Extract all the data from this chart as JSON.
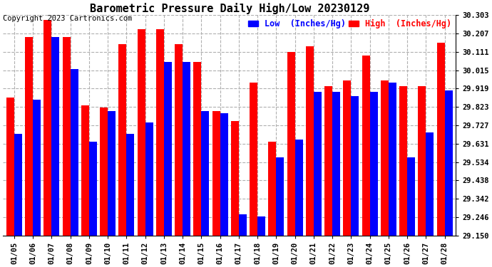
{
  "title": "Barometric Pressure Daily High/Low 20230129",
  "copyright": "Copyright 2023 Cartronics.com",
  "legend_low": "Low  (Inches/Hg)",
  "legend_high": "High  (Inches/Hg)",
  "dates": [
    "01/05",
    "01/06",
    "01/07",
    "01/08",
    "01/09",
    "01/10",
    "01/11",
    "01/12",
    "01/13",
    "01/14",
    "01/15",
    "01/16",
    "01/17",
    "01/18",
    "01/19",
    "01/20",
    "01/21",
    "01/22",
    "01/23",
    "01/24",
    "01/25",
    "01/26",
    "01/27",
    "01/28"
  ],
  "high_values": [
    29.87,
    30.19,
    30.28,
    30.19,
    29.83,
    29.82,
    30.15,
    30.23,
    30.23,
    30.15,
    30.06,
    29.8,
    29.75,
    29.95,
    29.64,
    30.11,
    30.14,
    29.93,
    29.96,
    30.09,
    29.96,
    29.93,
    29.93,
    30.16
  ],
  "low_values": [
    29.68,
    29.86,
    30.19,
    30.02,
    29.64,
    29.8,
    29.68,
    29.74,
    30.06,
    30.06,
    29.8,
    29.79,
    29.26,
    29.25,
    29.56,
    29.65,
    29.9,
    29.9,
    29.88,
    29.9,
    29.95,
    29.56,
    29.69,
    29.91
  ],
  "ymin": 29.15,
  "ymax": 30.303,
  "yticks": [
    29.15,
    29.246,
    29.342,
    29.438,
    29.534,
    29.631,
    29.727,
    29.823,
    29.919,
    30.015,
    30.111,
    30.207,
    30.303
  ],
  "bar_color_high": "#ff0000",
  "bar_color_low": "#0000ff",
  "background_color": "#ffffff",
  "grid_color": "#b0b0b0",
  "title_fontsize": 11,
  "tick_fontsize": 7.5,
  "legend_fontsize": 8.5,
  "copyright_fontsize": 7.5
}
